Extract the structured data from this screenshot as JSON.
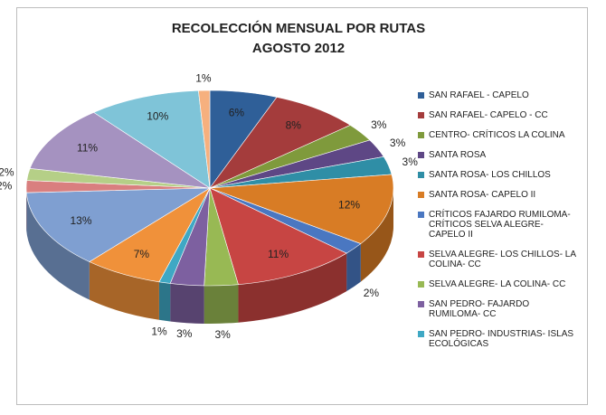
{
  "chart_data": {
    "type": "pie3d",
    "title": "RECOLECCIÓN  MENSUAL POR RUTAS",
    "subtitle": "AGOSTO 2012",
    "categories": [
      "SAN RAFAEL - CAPELO",
      "SAN RAFAEL- CAPELO - CC",
      "CENTRO- CRÍTICOS LA COLINA",
      "SANTA ROSA",
      "SANTA ROSA- LOS CHILLOS",
      "SANTA ROSA- CAPELO II",
      "CRÍTICOS FAJARDO RUMILOMA- CRÍTICOS SELVA ALEGRE- CAPELO II",
      "SELVA ALEGRE- LOS CHILLOS- LA COLINA- CC",
      "SELVA ALEGRE- LA COLINA- CC",
      "SAN PEDRO- FAJARDO RUMILOMA- CC",
      "SAN PEDRO- INDUSTRIAS- ISLAS ECOLÓGICAS",
      null,
      null,
      null,
      null,
      null,
      null,
      null
    ],
    "values": [
      6,
      8,
      3,
      3,
      3,
      12,
      2,
      11,
      3,
      3,
      1,
      7,
      13,
      2,
      2,
      11,
      10,
      1
    ],
    "value_labels": [
      "6%",
      "8%",
      "3%",
      "3%",
      "3%",
      "12%",
      "2%",
      "11%",
      "3%",
      "3%",
      "1%",
      "7%",
      "13%",
      "2%",
      "2%",
      "11%",
      "10%",
      "1%"
    ],
    "colors": [
      "#2f5f98",
      "#a43c3c",
      "#7f9a3c",
      "#5e4785",
      "#2f8ea6",
      "#d87c25",
      "#4a77c1",
      "#c74543",
      "#98b954",
      "#7d60a0",
      "#3fa8c4",
      "#f0913a",
      "#7f9fd1",
      "#d97f7f",
      "#b5cf87",
      "#a592c0",
      "#7fc4d8",
      "#f6b07e"
    ],
    "legend": "right"
  }
}
